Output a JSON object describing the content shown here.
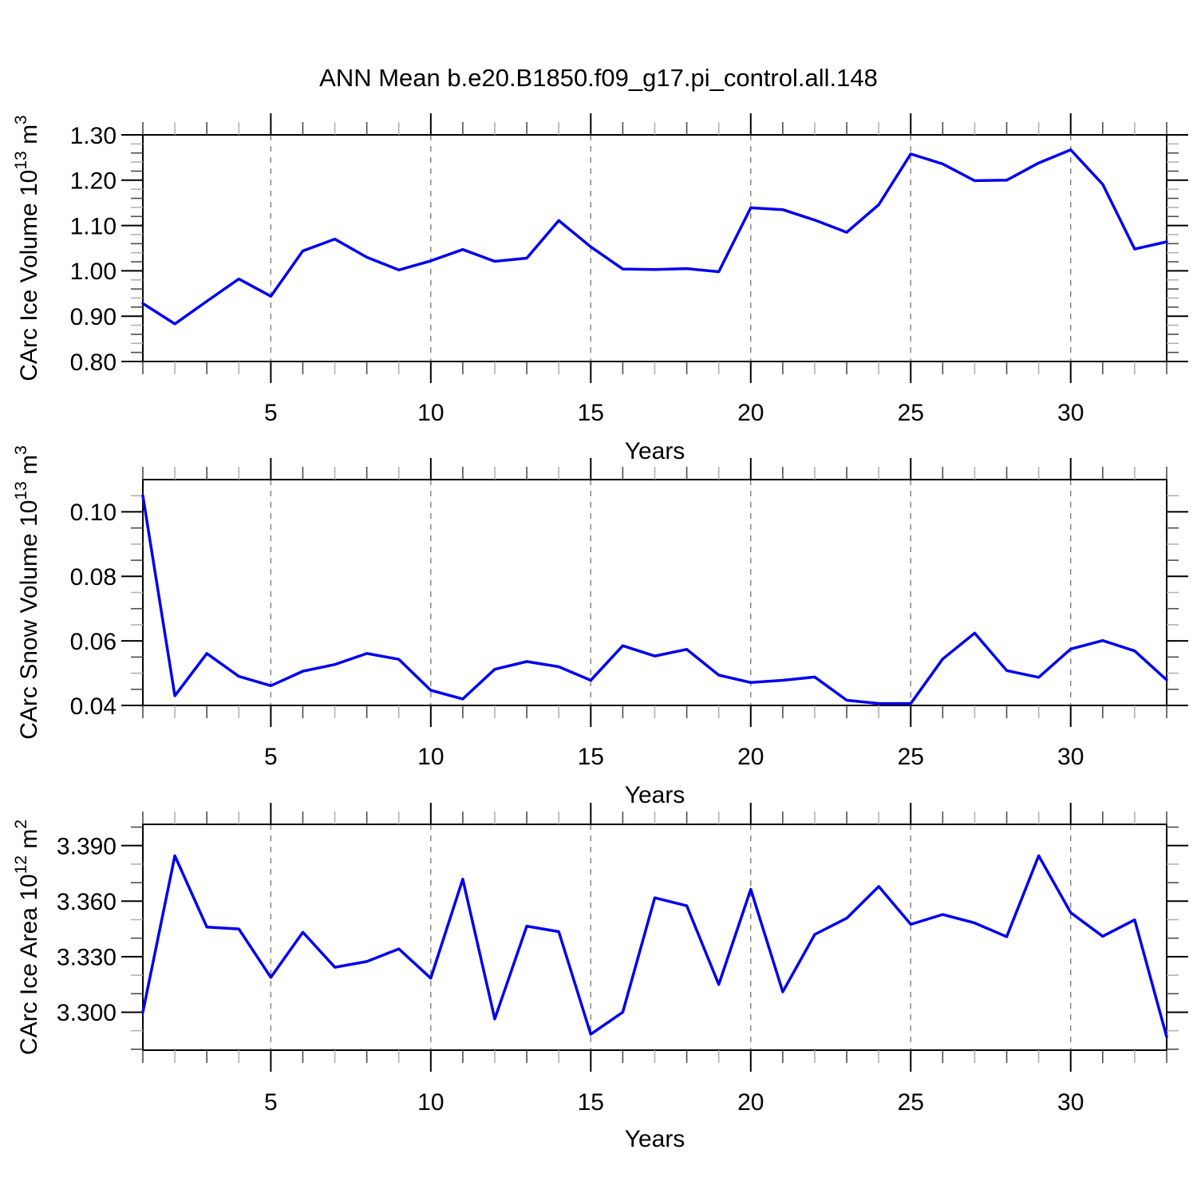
{
  "figure": {
    "title": "ANN Mean b.e20.B1850.f09_g17.pi_control.all.148",
    "background": "#ffffff",
    "frame_color": "#000000",
    "grid_color": "#808080",
    "minor_tick_color_dark": "#4d4d4d",
    "minor_tick_color_light": "#b3b3b3",
    "line_color": "#0000ee"
  },
  "chart_data": [
    {
      "type": "line",
      "ylabel": "CArc Ice Volume 10^13 m^3",
      "ylabel_rich": [
        [
          "CArc Ice Volume 10",
          false
        ],
        [
          "13",
          true
        ],
        [
          " m",
          false
        ],
        [
          "3",
          true
        ]
      ],
      "xlabel": "Years",
      "legend": "none",
      "grid": "vertical-dashed-at-major-xticks",
      "xlim": [
        1,
        33
      ],
      "ylim": [
        0.8,
        1.3
      ],
      "xticks": {
        "values": [
          5,
          10,
          15,
          20,
          25,
          30
        ],
        "labels": [
          "5",
          "10",
          "15",
          "20",
          "25",
          "30"
        ]
      },
      "xminor_step": 1,
      "yticks": {
        "values": [
          0.8,
          0.9,
          1.0,
          1.1,
          1.2,
          1.3
        ],
        "labels": [
          "0.80",
          "0.90",
          "1.00",
          "1.10",
          "1.20",
          "1.30"
        ]
      },
      "yminor_step": 0.02,
      "x": [
        1,
        2,
        3,
        4,
        5,
        6,
        7,
        8,
        9,
        10,
        11,
        12,
        13,
        14,
        15,
        16,
        17,
        18,
        19,
        20,
        21,
        22,
        23,
        24,
        25,
        26,
        27,
        28,
        29,
        30,
        31,
        32,
        33
      ],
      "values": [
        0.928,
        0.883,
        0.933,
        0.982,
        0.944,
        1.044,
        1.07,
        1.03,
        1.002,
        1.022,
        1.047,
        1.021,
        1.028,
        1.111,
        1.053,
        1.004,
        1.003,
        1.005,
        0.998,
        1.139,
        1.135,
        1.112,
        1.085,
        1.146,
        1.258,
        1.236,
        1.199,
        1.2,
        1.238,
        1.267,
        1.191,
        1.048,
        1.064
      ]
    },
    {
      "type": "line",
      "ylabel": "CArc Snow Volume 10^13 m^3",
      "ylabel_rich": [
        [
          "CArc Snow Volume 10",
          false
        ],
        [
          "13",
          true
        ],
        [
          " m",
          false
        ],
        [
          "3",
          true
        ]
      ],
      "xlabel": "Years",
      "legend": "none",
      "grid": "vertical-dashed-at-major-xticks",
      "xlim": [
        1,
        33
      ],
      "ylim": [
        0.04,
        0.11
      ],
      "xticks": {
        "values": [
          5,
          10,
          15,
          20,
          25,
          30
        ],
        "labels": [
          "5",
          "10",
          "15",
          "20",
          "25",
          "30"
        ]
      },
      "xminor_step": 1,
      "yticks": {
        "values": [
          0.04,
          0.06,
          0.08,
          0.1
        ],
        "labels": [
          "0.04",
          "0.06",
          "0.08",
          "0.10"
        ]
      },
      "yminor_step": 0.005,
      "x": [
        1,
        2,
        3,
        4,
        5,
        6,
        7,
        8,
        9,
        10,
        11,
        12,
        13,
        14,
        15,
        16,
        17,
        18,
        19,
        20,
        21,
        22,
        23,
        24,
        25,
        26,
        27,
        28,
        29,
        30,
        31,
        32,
        33
      ],
      "values": [
        0.105,
        0.043,
        0.0561,
        0.049,
        0.0461,
        0.0506,
        0.0527,
        0.0561,
        0.0543,
        0.0447,
        0.042,
        0.0512,
        0.0536,
        0.052,
        0.0478,
        0.0585,
        0.0553,
        0.0574,
        0.0494,
        0.0471,
        0.0478,
        0.0488,
        0.0416,
        0.0406,
        0.0406,
        0.0544,
        0.0624,
        0.0508,
        0.0487,
        0.0575,
        0.0601,
        0.0569,
        0.0479
      ]
    },
    {
      "type": "line",
      "ylabel": "CArc Ice Area 10^12 m^2",
      "ylabel_rich": [
        [
          "CArc Ice Area 10",
          false
        ],
        [
          "12",
          true
        ],
        [
          " m",
          false
        ],
        [
          "2",
          true
        ]
      ],
      "xlabel": "Years",
      "legend": "none",
      "grid": "vertical-dashed-at-major-xticks",
      "xlim": [
        1,
        33
      ],
      "ylim": [
        3.2795,
        3.4015
      ],
      "xticks": {
        "values": [
          5,
          10,
          15,
          20,
          25,
          30
        ],
        "labels": [
          "5",
          "10",
          "15",
          "20",
          "25",
          "30"
        ]
      },
      "xminor_step": 1,
      "yticks": {
        "values": [
          3.3,
          3.33,
          3.36,
          3.39
        ],
        "labels": [
          "3.300",
          "3.330",
          "3.360",
          "3.390"
        ]
      },
      "yminor_step": 0.01,
      "x": [
        1,
        2,
        3,
        4,
        5,
        6,
        7,
        8,
        9,
        10,
        11,
        12,
        13,
        14,
        15,
        16,
        17,
        18,
        19,
        20,
        21,
        22,
        23,
        24,
        25,
        26,
        27,
        28,
        29,
        30,
        31,
        32,
        33
      ],
      "values": [
        3.3,
        3.3845,
        3.346,
        3.345,
        3.3188,
        3.3432,
        3.3243,
        3.3274,
        3.3342,
        3.3184,
        3.3719,
        3.2964,
        3.3465,
        3.3435,
        3.2881,
        3.3,
        3.3618,
        3.3575,
        3.315,
        3.3664,
        3.311,
        3.342,
        3.3508,
        3.3679,
        3.3475,
        3.3528,
        3.3482,
        3.3408,
        3.3845,
        3.3538,
        3.341,
        3.3499,
        3.2867
      ]
    }
  ]
}
